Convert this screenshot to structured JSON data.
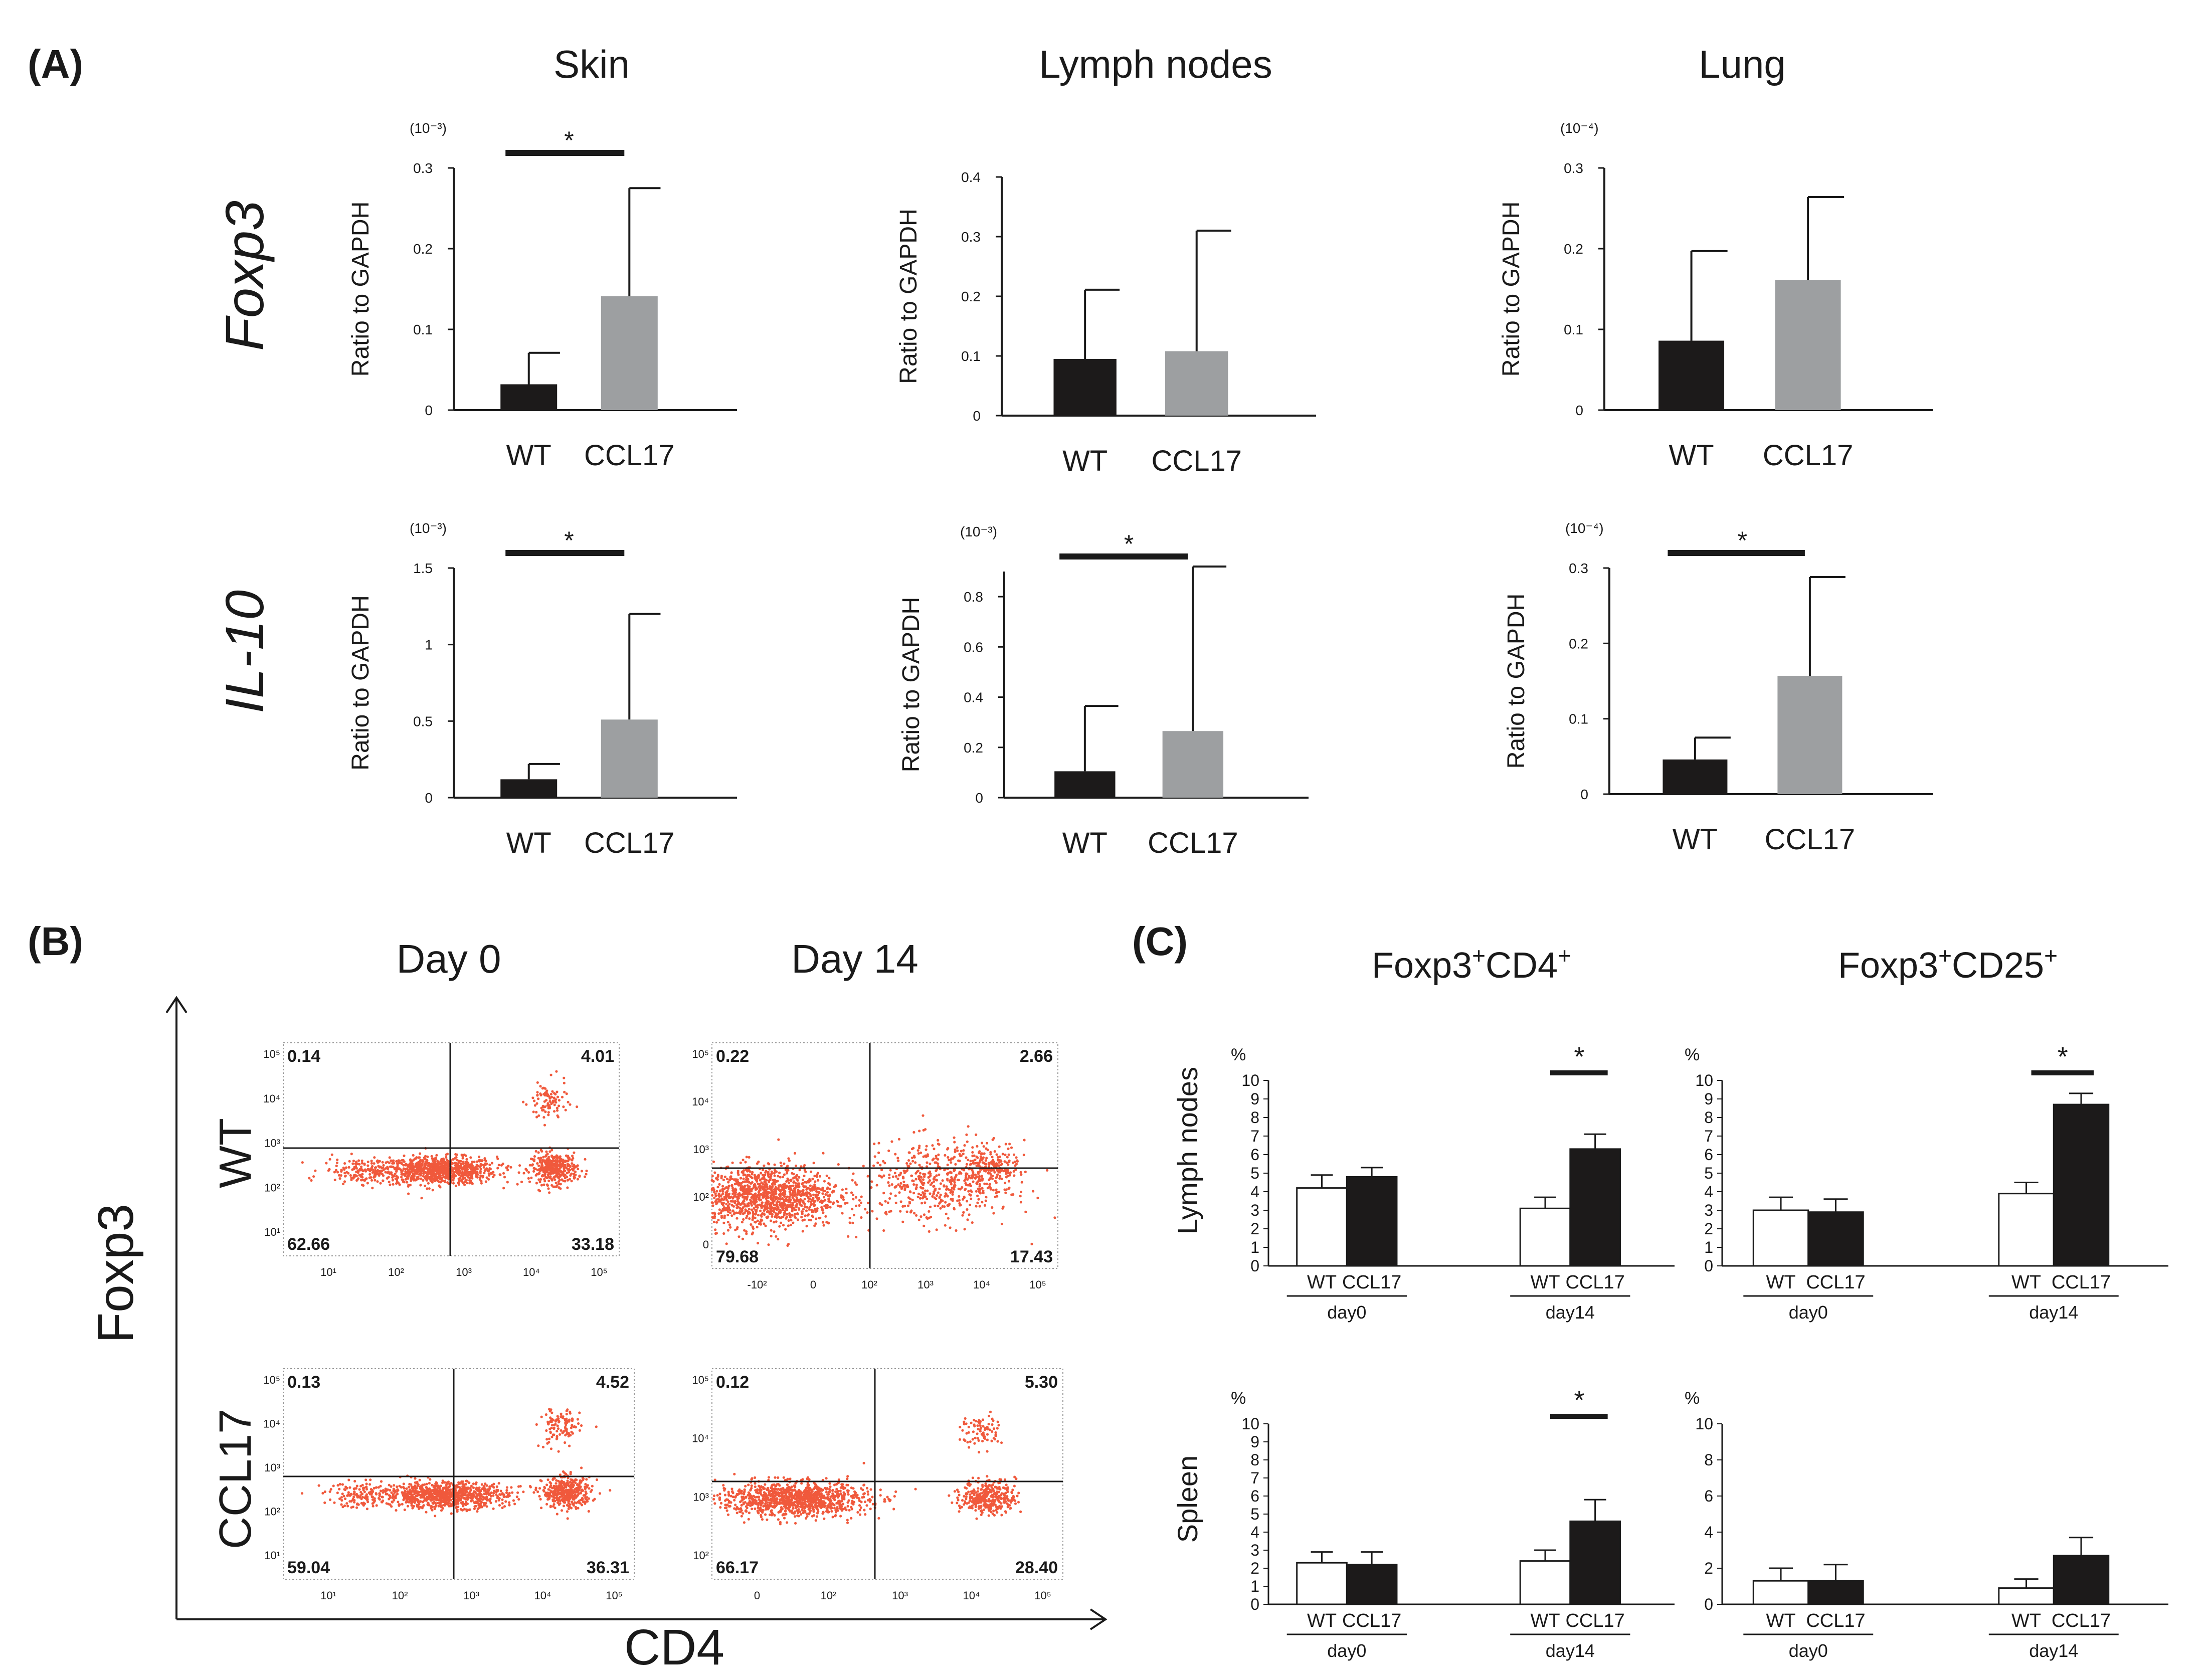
{
  "colors": {
    "wt_bar": "#1c1a1a",
    "ccl17_bar": "#9d9fa1",
    "white_bar": "#ffffff",
    "black_bar": "#1c1a1a",
    "flow_dot": "#f0593c",
    "axis": "#1a1a1a"
  },
  "panel_A": {
    "label": "(A)",
    "column_titles": [
      "Skin",
      "Lymph nodes",
      "Lung"
    ],
    "row_genes": [
      "Foxp3",
      "IL-10"
    ],
    "ylabel": "Ratio to GAPDH"
  },
  "panel_B": {
    "label": "(B)",
    "column_titles": [
      "Day 0",
      "Day 14"
    ],
    "row_labels": [
      "WT",
      "CCL17"
    ],
    "ylabel": "Foxp3",
    "xlabel": "CD4"
  },
  "panel_C": {
    "label": "(C)",
    "column_titles": [
      {
        "main": "Foxp3",
        "sup1": "+",
        "mid": "CD4",
        "sup2": "+"
      },
      {
        "main": "Foxp3",
        "sup1": "+",
        "mid": "CD25",
        "sup2": "+"
      }
    ],
    "row_labels": [
      "Lymph nodes",
      "Spleen"
    ]
  },
  "chart_data": [
    {
      "id": "A-skin-foxp3",
      "type": "bar",
      "categories": [
        "WT",
        "CCL17"
      ],
      "values": [
        0.032,
        0.141
      ],
      "errors": [
        0.039,
        0.134
      ],
      "ylim": [
        0,
        0.3
      ],
      "yticks": [
        "0",
        "0.1",
        "0.2",
        "0.3"
      ],
      "scale_note": "(10⁻³)",
      "ylabel": "Ratio to GAPDH",
      "significance": "*"
    },
    {
      "id": "A-ln-foxp3",
      "type": "bar",
      "categories": [
        "WT",
        "CCL17"
      ],
      "values": [
        0.095,
        0.108
      ],
      "errors": [
        0.116,
        0.202
      ],
      "ylim": [
        0,
        0.4
      ],
      "yticks": [
        "0",
        "0.1",
        "0.2",
        "0.3",
        "0.4"
      ],
      "scale_note": "",
      "ylabel": "Ratio to GAPDH",
      "significance": ""
    },
    {
      "id": "A-lung-foxp3",
      "type": "bar",
      "categories": [
        "WT",
        "CCL17"
      ],
      "values": [
        0.086,
        0.161
      ],
      "errors": [
        0.111,
        0.103
      ],
      "ylim": [
        0,
        0.3
      ],
      "yticks": [
        "0",
        "0.1",
        "0.2",
        "0.3"
      ],
      "scale_note": "(10⁻⁴)",
      "ylabel": "Ratio to GAPDH",
      "significance": ""
    },
    {
      "id": "A-skin-il10",
      "type": "bar",
      "categories": [
        "WT",
        "CCL17"
      ],
      "values": [
        0.12,
        0.51
      ],
      "errors": [
        0.1,
        0.69
      ],
      "ylim": [
        0,
        1.5
      ],
      "yticks": [
        "0",
        "0.5",
        "1",
        "1.5"
      ],
      "scale_note": "(10⁻³)",
      "ylabel": "Ratio to GAPDH",
      "significance": "*"
    },
    {
      "id": "A-ln-il10",
      "type": "bar",
      "categories": [
        "WT",
        "CCL17"
      ],
      "values": [
        0.105,
        0.265
      ],
      "errors": [
        0.26,
        0.655
      ],
      "ylim": [
        0,
        0.9
      ],
      "yticks": [
        "0",
        "0.2",
        "0.4",
        "0.6",
        "0.8"
      ],
      "scale_note": "(10⁻³)",
      "ylabel": "Ratio to GAPDH",
      "significance": "*"
    },
    {
      "id": "A-lung-il10",
      "type": "bar",
      "categories": [
        "WT",
        "CCL17"
      ],
      "values": [
        0.046,
        0.157
      ],
      "errors": [
        0.029,
        0.131
      ],
      "ylim": [
        0,
        0.3
      ],
      "yticks": [
        "0",
        "0.1",
        "0.2",
        "0.3"
      ],
      "scale_note": "(10⁻⁴)",
      "ylabel": "Ratio to GAPDH",
      "significance": "*"
    },
    {
      "id": "B-wt-day0",
      "type": "scatter",
      "quadrants": [
        "0.14",
        "4.01",
        "62.66",
        "33.18"
      ],
      "xticks": [
        "10¹",
        "10²",
        "10³",
        "10⁴",
        "10⁵"
      ],
      "yticks": [
        "10¹",
        "10²",
        "10³",
        "10⁴",
        "10⁵"
      ],
      "clusters": [
        [
          2.4,
          2.0,
          0.45,
          0.16,
          900
        ],
        [
          4.2,
          2.05,
          0.18,
          0.18,
          380
        ],
        [
          4.1,
          3.6,
          0.15,
          0.25,
          90
        ],
        [
          1.2,
          2.0,
          0.3,
          0.15,
          150
        ]
      ]
    },
    {
      "id": "B-wt-day14",
      "type": "scatter",
      "quadrants": [
        "0.22",
        "2.66",
        "79.68",
        "17.43"
      ],
      "xticks": [
        "-10²",
        "0",
        "10²",
        "10³",
        "10⁴",
        "10⁵"
      ],
      "yticks": [
        "0",
        "10²",
        "10³",
        "10⁴",
        "10⁵"
      ],
      "clusters": [
        [
          0.8,
          1.6,
          0.55,
          0.35,
          1300
        ],
        [
          3.4,
          1.9,
          0.55,
          0.45,
          500
        ],
        [
          4.2,
          2.2,
          0.2,
          0.25,
          200
        ]
      ]
    },
    {
      "id": "B-ccl17-day0",
      "type": "scatter",
      "quadrants": [
        "0.13",
        "4.52",
        "59.04",
        "36.31"
      ],
      "xticks": [
        "10¹",
        "10²",
        "10³",
        "10⁴",
        "10⁵"
      ],
      "yticks": [
        "10¹",
        "10²",
        "10³",
        "10⁴",
        "10⁵"
      ],
      "clusters": [
        [
          2.4,
          2.0,
          0.45,
          0.15,
          900
        ],
        [
          4.2,
          2.05,
          0.18,
          0.18,
          400
        ],
        [
          4.1,
          3.6,
          0.15,
          0.25,
          110
        ],
        [
          1.2,
          2.0,
          0.3,
          0.15,
          150
        ]
      ]
    },
    {
      "id": "B-ccl17-day14",
      "type": "scatter",
      "quadrants": [
        "0.12",
        "66.17",
        "5.30",
        "28.40"
      ],
      "quadrant_order": [
        "ul",
        "ll",
        "ur",
        "lr"
      ],
      "xticks": [
        "0",
        "10²",
        "10³",
        "10⁴",
        "10⁵"
      ],
      "yticks": [
        "10²",
        "10³",
        "10⁴",
        "10⁵"
      ],
      "clusters": [
        [
          1.2,
          1.9,
          0.55,
          0.2,
          1100
        ],
        [
          4.1,
          1.95,
          0.2,
          0.2,
          350
        ],
        [
          4.0,
          3.5,
          0.15,
          0.2,
          80
        ]
      ]
    },
    {
      "id": "C-ln-cd4",
      "type": "bar",
      "groups": [
        "day0",
        "day14"
      ],
      "categories": [
        "WT",
        "CCL17"
      ],
      "series": [
        {
          "name": "WT",
          "values": [
            4.2,
            3.1
          ],
          "errors": [
            0.7,
            0.6
          ]
        },
        {
          "name": "CCL17",
          "values": [
            4.8,
            6.3
          ],
          "errors": [
            0.5,
            0.8
          ]
        }
      ],
      "ylim": [
        0,
        10
      ],
      "yticks": [
        "0",
        "1",
        "2",
        "3",
        "4",
        "5",
        "6",
        "7",
        "8",
        "9",
        "10"
      ],
      "unit": "%",
      "significance": "*"
    },
    {
      "id": "C-ln-cd25",
      "type": "bar",
      "groups": [
        "day0",
        "day14"
      ],
      "categories": [
        "WT",
        "CCL17"
      ],
      "series": [
        {
          "name": "WT",
          "values": [
            3.0,
            3.9
          ],
          "errors": [
            0.7,
            0.6
          ]
        },
        {
          "name": "CCL17",
          "values": [
            2.9,
            8.7
          ],
          "errors": [
            0.7,
            0.6
          ]
        }
      ],
      "ylim": [
        0,
        10
      ],
      "yticks": [
        "0",
        "1",
        "2",
        "3",
        "4",
        "5",
        "6",
        "7",
        "8",
        "9",
        "10"
      ],
      "unit": "%",
      "significance": "*"
    },
    {
      "id": "C-spleen-cd4",
      "type": "bar",
      "groups": [
        "day0",
        "day14"
      ],
      "categories": [
        "WT",
        "CCL17"
      ],
      "series": [
        {
          "name": "WT",
          "values": [
            2.3,
            2.4
          ],
          "errors": [
            0.6,
            0.6
          ]
        },
        {
          "name": "CCL17",
          "values": [
            2.2,
            4.6
          ],
          "errors": [
            0.7,
            1.2
          ]
        }
      ],
      "ylim": [
        0,
        10
      ],
      "yticks": [
        "0",
        "1",
        "2",
        "3",
        "4",
        "5",
        "6",
        "7",
        "8",
        "9",
        "10"
      ],
      "unit": "%",
      "significance": "*"
    },
    {
      "id": "C-spleen-cd25",
      "type": "bar",
      "groups": [
        "day0",
        "day14"
      ],
      "categories": [
        "WT",
        "CCL17"
      ],
      "series": [
        {
          "name": "WT",
          "values": [
            1.3,
            0.9
          ],
          "errors": [
            0.7,
            0.5
          ]
        },
        {
          "name": "CCL17",
          "values": [
            1.3,
            2.7
          ],
          "errors": [
            0.9,
            1.0
          ]
        }
      ],
      "ylim": [
        0,
        10
      ],
      "yticks": [
        "0",
        "2",
        "4",
        "6",
        "8",
        "10"
      ],
      "unit": "%",
      "significance": ""
    }
  ]
}
